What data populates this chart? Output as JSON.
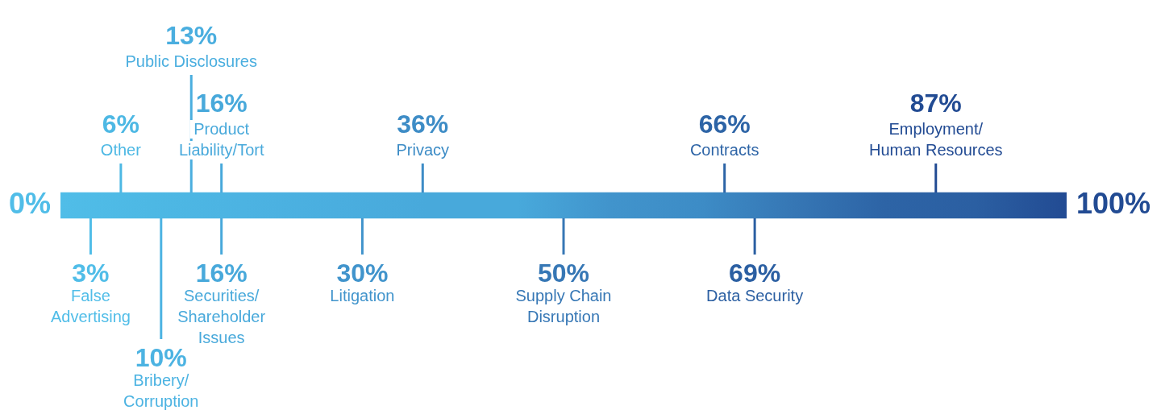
{
  "chart_data": {
    "type": "other",
    "categories": [
      "False\nAdvertising",
      "Other",
      "Bribery/\nCorruption",
      "Public Disclosures",
      "Securities/\nShareholder\nIssues",
      "Product\nLiability/Tort",
      "Litigation",
      "Privacy",
      "Supply Chain\nDisruption",
      "Contracts",
      "Data Security",
      "Employment/\nHuman Resources"
    ],
    "values": [
      3,
      6,
      10,
      13,
      16,
      16,
      30,
      36,
      50,
      66,
      69,
      87
    ],
    "value_labels": [
      "3%",
      "6%",
      "10%",
      "13%",
      "16%",
      "16%",
      "30%",
      "36%",
      "50%",
      "66%",
      "69%",
      "87%"
    ],
    "colors": [
      "#50bde8",
      "#4db8e4",
      "#4cb3e2",
      "#4aaedf",
      "#48a9db",
      "#48a9db",
      "#4194cc",
      "#3d8cc6",
      "#3677b5",
      "#2d64a6",
      "#2b5fa2",
      "#224b93"
    ],
    "annotations": [
      "0%",
      "100%"
    ]
  }
}
